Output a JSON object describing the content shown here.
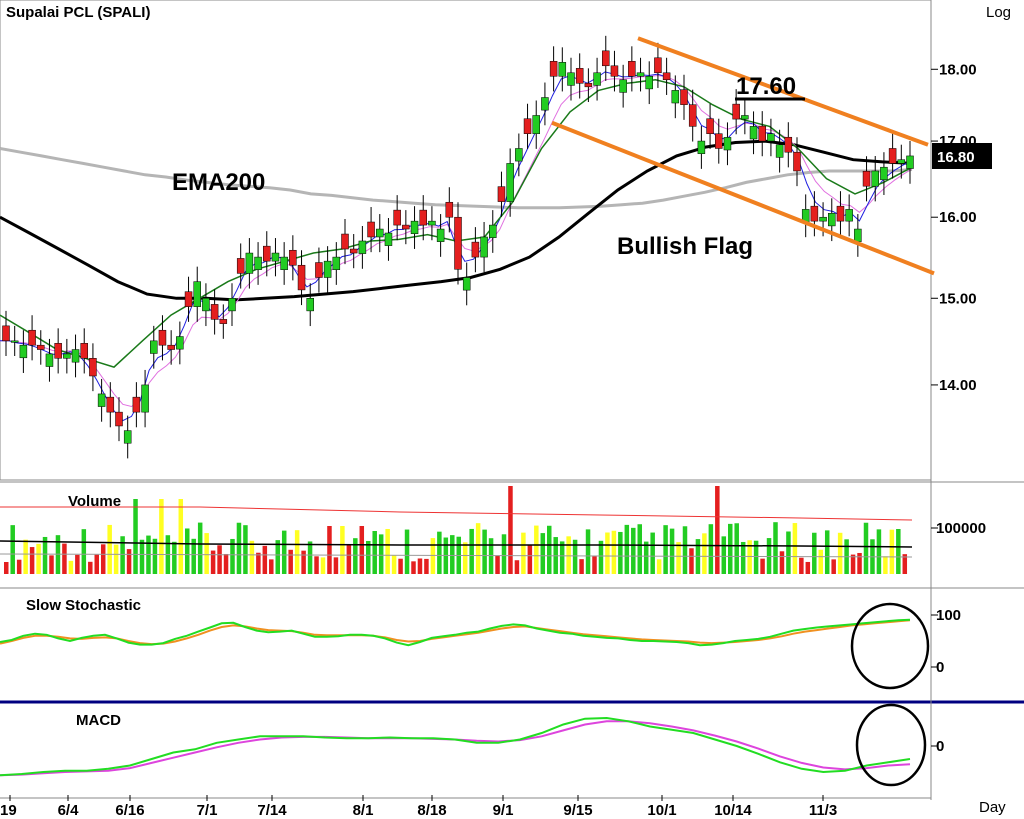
{
  "chart_data": [
    {
      "type": "candlestick",
      "title": "Supalai  PCL  (SPALI)",
      "scale_label": "Log",
      "x_unit_label": "Day",
      "y_scale": "log",
      "ylim": [
        13.0,
        18.9
      ],
      "y_ticks": [
        "18.00",
        "17.00",
        "16.00",
        "15.00",
        "14.00"
      ],
      "x_ticks": [
        "19",
        "6/4",
        "6/16",
        "7/1",
        "7/14",
        "8/1",
        "8/18",
        "9/1",
        "9/15",
        "10/1",
        "10/14",
        "11/3"
      ],
      "last_price_label": "16.80",
      "annotations": {
        "ema_label": "EMA200",
        "pattern_label": "Bullish Flag",
        "target_label": "17.60"
      },
      "close_path": [
        14.5,
        14.5,
        14.45,
        14.45,
        14.4,
        14.35,
        14.3,
        14.35,
        14.4,
        14.3,
        14.1,
        13.9,
        13.7,
        13.55,
        13.5,
        13.7,
        14.0,
        14.5,
        14.45,
        14.4,
        14.55,
        14.9,
        15.2,
        15.0,
        14.75,
        14.7,
        15.0,
        15.3,
        15.55,
        15.5,
        15.45,
        15.55,
        15.5,
        15.4,
        15.1,
        15.0,
        15.25,
        15.45,
        15.5,
        15.6,
        15.55,
        15.7,
        15.75,
        15.85,
        15.8,
        15.9,
        15.85,
        15.95,
        15.9,
        15.95,
        15.85,
        16.0,
        15.35,
        15.25,
        15.5,
        15.75,
        15.9,
        16.2,
        16.7,
        16.9,
        17.1,
        17.35,
        17.6,
        17.9,
        18.1,
        17.95,
        17.8,
        17.75,
        17.95,
        18.05,
        17.9,
        17.85,
        17.9,
        17.95,
        17.9,
        17.95,
        17.85,
        17.7,
        17.5,
        17.2,
        17.0,
        17.1,
        16.9,
        17.05,
        17.3,
        17.35,
        17.2,
        17.0,
        17.1,
        16.95,
        16.85,
        16.6,
        16.1,
        15.95,
        16.0,
        16.05,
        15.95,
        16.1,
        15.85,
        16.4,
        16.6,
        16.65,
        16.7,
        16.75,
        16.8
      ],
      "series": [
        {
          "name": "EMA200",
          "values": [
            16.9,
            16.85,
            16.8,
            16.75,
            16.7,
            16.65,
            16.6,
            16.55,
            16.52,
            16.48,
            16.45,
            16.42,
            16.4,
            16.38,
            16.35,
            16.3,
            16.28,
            16.25,
            16.22,
            16.2,
            16.18,
            16.16,
            16.15,
            16.14,
            16.13,
            16.12,
            16.12,
            16.12,
            16.13,
            16.14,
            16.16,
            16.18,
            16.22,
            16.27,
            16.32,
            16.38,
            16.45,
            16.5,
            16.55,
            16.58,
            16.6,
            16.6,
            16.6,
            16.6,
            16.62
          ]
        },
        {
          "name": "",
          "values": [
            16.0,
            15.8,
            15.6,
            15.4,
            15.2,
            15.05,
            15.0,
            15.0,
            14.98,
            15.0,
            15.02,
            15.05,
            15.08,
            15.12,
            15.16,
            15.2,
            15.25,
            15.35,
            15.5,
            15.75,
            16.05,
            16.35,
            16.6,
            16.8,
            16.92,
            16.98,
            17.0,
            16.95,
            16.85,
            16.75,
            16.72,
            16.7
          ]
        },
        {
          "name": "",
          "values": [
            14.8,
            14.6,
            14.4,
            14.3,
            14.2,
            14.5,
            14.8,
            15.0,
            15.2,
            15.35,
            15.45,
            15.55,
            15.6,
            15.7,
            15.72,
            15.78,
            15.7,
            15.75,
            16.2,
            16.9,
            17.4,
            17.7,
            17.8,
            17.85,
            17.75,
            17.5,
            17.3,
            17.2,
            16.9,
            16.5,
            16.3,
            16.45,
            16.65
          ]
        }
      ]
    },
    {
      "type": "bar",
      "title": "Volume",
      "y_ticks": [
        "100000"
      ],
      "x_ticks": []
    },
    {
      "type": "line",
      "title": "Slow  Stochastic",
      "y_ticks": [
        "100",
        "0"
      ],
      "x_ticks": [],
      "series": [
        {
          "name": "",
          "values": [
            48,
            52,
            60,
            64,
            62,
            55,
            50,
            56,
            60,
            62,
            55,
            47,
            43,
            43,
            46,
            54,
            60,
            68,
            76,
            84,
            85,
            77,
            70,
            67,
            68,
            70,
            64,
            58,
            58,
            59,
            62,
            62,
            60,
            55,
            47,
            42,
            48,
            56,
            59,
            62,
            66,
            68,
            74,
            79,
            82,
            80,
            74,
            70,
            66,
            64,
            60,
            58,
            56,
            55,
            52,
            50,
            50,
            49,
            48,
            46,
            42,
            43,
            46,
            50,
            52,
            54,
            58,
            64,
            70,
            73,
            76,
            78,
            80,
            82,
            84,
            86,
            88,
            90,
            91
          ]
        },
        {
          "name": "",
          "values": [
            45,
            50,
            56,
            60,
            60,
            58,
            55,
            54,
            56,
            57,
            55,
            50,
            46,
            44,
            45,
            49,
            55,
            62,
            70,
            77,
            80,
            78,
            74,
            71,
            70,
            69,
            66,
            62,
            61,
            61,
            61,
            61,
            60,
            57,
            52,
            49,
            50,
            54,
            57,
            60,
            63,
            66,
            70,
            74,
            77,
            78,
            75,
            72,
            69,
            66,
            63,
            61,
            59,
            57,
            55,
            53,
            52,
            51,
            50,
            49,
            47,
            46,
            47,
            48,
            50,
            52,
            55,
            59,
            64,
            68,
            71,
            74,
            77,
            80,
            82,
            84,
            86,
            88,
            90
          ]
        }
      ]
    },
    {
      "type": "line",
      "title": "MACD",
      "y_ticks": [
        "0"
      ],
      "x_ticks": [],
      "series": [
        {
          "name": "",
          "values": [
            -0.45,
            -0.43,
            -0.4,
            -0.38,
            -0.38,
            -0.35,
            -0.3,
            -0.2,
            -0.1,
            -0.05,
            0.05,
            0.1,
            0.15,
            0.15,
            0.15,
            0.13,
            0.12,
            0.12,
            0.13,
            0.12,
            0.12,
            0.1,
            0.05,
            0.05,
            0.1,
            0.2,
            0.33,
            0.42,
            0.43,
            0.38,
            0.3,
            0.25,
            0.2,
            0.1,
            0.0,
            -0.12,
            -0.25,
            -0.35,
            -0.4,
            -0.38,
            -0.3,
            -0.25,
            -0.2
          ]
        },
        {
          "name": "",
          "values": [
            -0.45,
            -0.44,
            -0.42,
            -0.4,
            -0.39,
            -0.38,
            -0.34,
            -0.26,
            -0.18,
            -0.1,
            -0.02,
            0.05,
            0.1,
            0.13,
            0.14,
            0.14,
            0.13,
            0.12,
            0.12,
            0.12,
            0.11,
            0.1,
            0.08,
            0.07,
            0.09,
            0.15,
            0.24,
            0.33,
            0.38,
            0.38,
            0.35,
            0.3,
            0.24,
            0.16,
            0.07,
            -0.04,
            -0.16,
            -0.26,
            -0.33,
            -0.36,
            -0.34,
            -0.3,
            -0.28
          ]
        }
      ]
    }
  ],
  "colors": {
    "up": "#22cc22",
    "down": "#e41f1f",
    "flag": "#f08020",
    "ema200": "#b5b5b5",
    "ema_black": "#000000",
    "ema_green": "#1a7a1a",
    "ema_blue": "#2020e0",
    "ema_pink": "#e070e0",
    "stoch_k": "#22dd22",
    "stoch_d": "#f09020",
    "macd": "#22dd22",
    "signal": "#dd44dd",
    "vol_yellow": "#ffff22",
    "vol_avg_red": "#ee3333",
    "separator": "#000080"
  }
}
